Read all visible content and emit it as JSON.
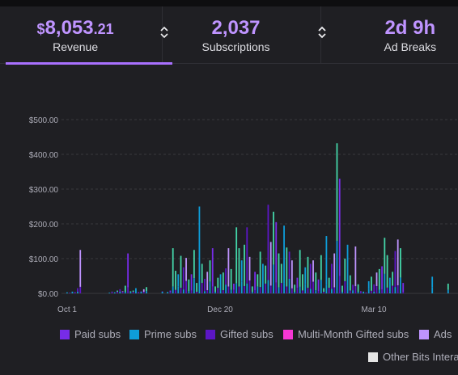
{
  "tabs": [
    {
      "currency": "$",
      "whole": "8,053",
      "cents": ".21",
      "label": "Revenue",
      "active": true
    },
    {
      "value": "2,037",
      "label": "Subscriptions",
      "active": false
    },
    {
      "value": "2d 9h",
      "label": "Ad Breaks",
      "active": false
    }
  ],
  "colors": {
    "accent": "#a970ff",
    "paid_subs": "#772ce8",
    "prime_subs": "#0e9dd9",
    "gifted_subs": "#5c16c5",
    "multi_month": "#f637d4",
    "ads": "#bf94ff",
    "other_bits": "#e5e5e5",
    "teal": "#44d6a9"
  },
  "chart_data": {
    "type": "bar",
    "stacked": true,
    "ylim": [
      0,
      500
    ],
    "y_ticks": [
      "$0.00",
      "$100.00",
      "$200.00",
      "$300.00",
      "$400.00",
      "$500.00"
    ],
    "x_ticks": [
      "Oct 1",
      "Dec 20",
      "Mar 10"
    ],
    "grid": true,
    "legend_placement": "bottom",
    "series_names": [
      "Paid subs",
      "Prime subs",
      "Gifted subs",
      "Multi-Month Gifted subs",
      "Ads",
      "Other Bits Interactions"
    ],
    "values": [
      3,
      2,
      5,
      4,
      15,
      125,
      0,
      0,
      0,
      0,
      0,
      0,
      0,
      0,
      0,
      0,
      2,
      5,
      3,
      8,
      12,
      6,
      22,
      115,
      6,
      8,
      15,
      4,
      6,
      12,
      18,
      0,
      0,
      0,
      0,
      0,
      6,
      0,
      4,
      8,
      130,
      65,
      55,
      108,
      75,
      102,
      40,
      55,
      125,
      30,
      250,
      85,
      42,
      62,
      95,
      130,
      20,
      45,
      55,
      60,
      72,
      130,
      70,
      28,
      190,
      130,
      95,
      140,
      190,
      105,
      20,
      62,
      55,
      120,
      85,
      80,
      255,
      148,
      235,
      205,
      115,
      85,
      195,
      132,
      120,
      95,
      25,
      45,
      125,
      55,
      75,
      105,
      85,
      95,
      60,
      40,
      110,
      15,
      165,
      45,
      85,
      115,
      432,
      330,
      22,
      100,
      140,
      52,
      25,
      135,
      26,
      6,
      5,
      3,
      35,
      48,
      26,
      60,
      70,
      78,
      160,
      110,
      45,
      62,
      122,
      155,
      130,
      30,
      0,
      0,
      0,
      0,
      0,
      0,
      0,
      0,
      0,
      0,
      48,
      0,
      0,
      0,
      0,
      0,
      28,
      0,
      0,
      0
    ]
  },
  "legend": [
    {
      "label": "Paid subs",
      "color": "#772ce8"
    },
    {
      "label": "Prime subs",
      "color": "#0e9dd9"
    },
    {
      "label": "Gifted subs",
      "color": "#5c16c5"
    },
    {
      "label": "Multi-Month Gifted subs",
      "color": "#f637d4"
    },
    {
      "label": "Ads",
      "color": "#bf94ff"
    },
    {
      "label": "Other Bits Interactions",
      "color": "#e5e5e5"
    }
  ]
}
